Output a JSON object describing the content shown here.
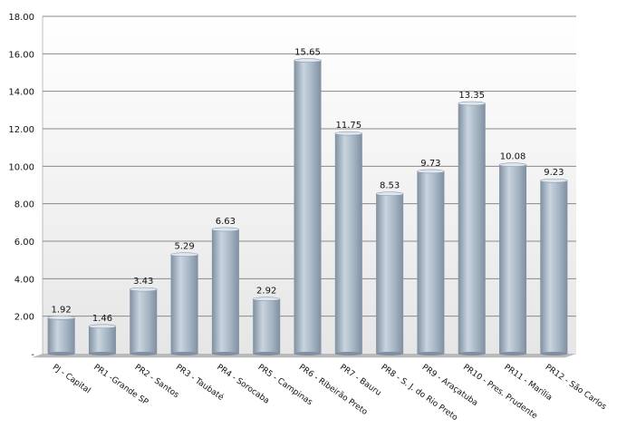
{
  "chart_data": {
    "type": "bar",
    "categories": [
      "PJ - Capital",
      "PR1 -Grande SP",
      "PR2 - Santos",
      "PR3 - Taubaté",
      "PR4 - Sorocaba",
      "PR5 - Campinas",
      "PR6 - Ribeirão Preto",
      "PR7 - Bauru",
      "PR8 - S. J. do Rio Preto",
      "PR9 - Araçatuba",
      "PR10 - Pres. Prudente",
      "PR11 - Marília",
      "PR12 - São Carlos"
    ],
    "values": [
      1.92,
      1.46,
      3.43,
      5.29,
      6.63,
      2.92,
      15.65,
      11.75,
      8.53,
      9.73,
      13.35,
      10.08,
      9.23
    ],
    "value_labels": [
      "1.92",
      "1.46",
      "3.43",
      "5.29",
      "6.63",
      "2.92",
      "15.65",
      "11.75",
      "8.53",
      "9.73",
      "13.35",
      "10.08",
      "9.23"
    ],
    "y_ticks": [
      0,
      2,
      4,
      6,
      8,
      10,
      12,
      14,
      16,
      18
    ],
    "y_tick_labels": [
      "-",
      "2.00",
      "4.00",
      "6.00",
      "8.00",
      "10.00",
      "12.00",
      "14.00",
      "16.00",
      "18.00"
    ],
    "ylim": [
      0,
      18
    ],
    "title": "",
    "xlabel": "",
    "ylabel": "",
    "grid": true,
    "legend": "none",
    "colors": {
      "bar_light": "#c9d4df",
      "bar_mid": "#a4b3c2",
      "bar_dark": "#7f8fa0",
      "plot_bg_top": "#ffffff",
      "plot_bg_bottom": "#e6e6e6",
      "gridline": "#8a8a8a",
      "floor": "#b9b9b9"
    }
  }
}
